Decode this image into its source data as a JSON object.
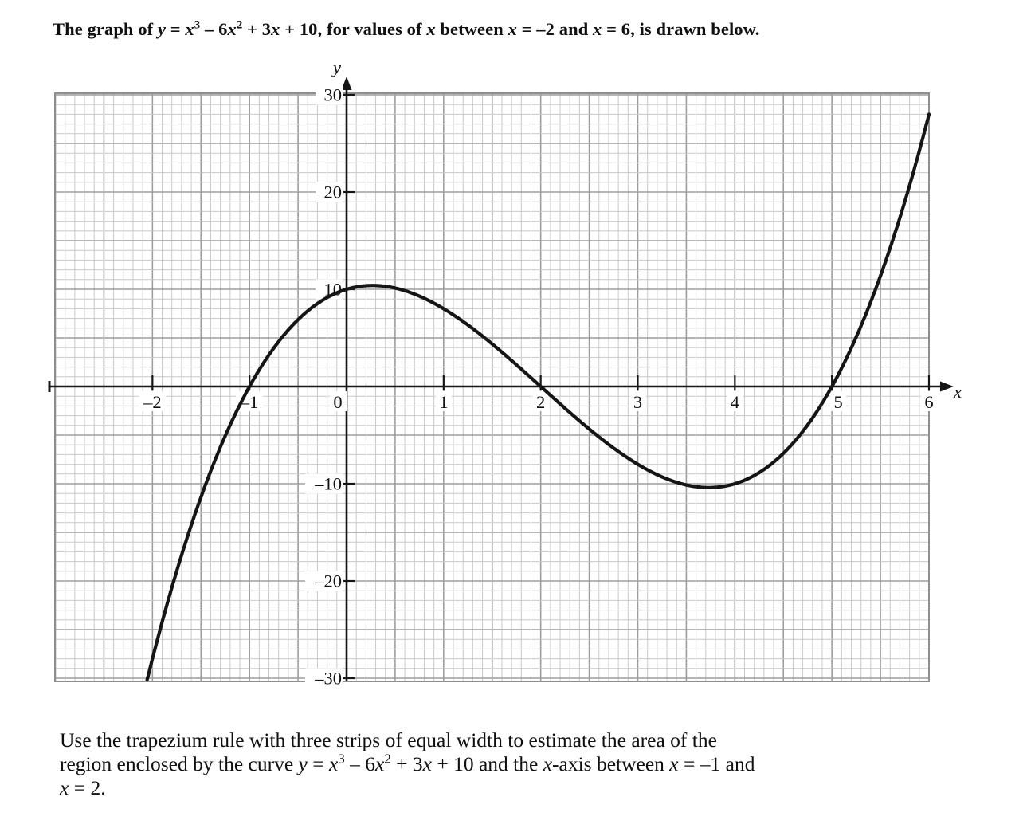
{
  "page": {
    "title_segments": [
      {
        "t": "The graph of "
      },
      {
        "t": "y",
        "i": true
      },
      {
        "t": " = "
      },
      {
        "t": "x",
        "i": true
      },
      {
        "t": "3",
        "s": true
      },
      {
        "t": " – 6"
      },
      {
        "t": "x",
        "i": true
      },
      {
        "t": "2",
        "s": true
      },
      {
        "t": " + 3"
      },
      {
        "t": "x",
        "i": true
      },
      {
        "t": " + 10, for values of "
      },
      {
        "t": "x",
        "i": true
      },
      {
        "t": " between "
      },
      {
        "t": "x",
        "i": true
      },
      {
        "t": " = –2 and "
      },
      {
        "t": "x",
        "i": true
      },
      {
        "t": " = 6, is drawn below."
      }
    ],
    "question_lines": [
      [
        {
          "t": "Use the trapezium rule with three strips of equal width to estimate the area of the"
        }
      ],
      [
        {
          "t": "region enclosed by the curve "
        },
        {
          "t": "y",
          "i": true
        },
        {
          "t": " = "
        },
        {
          "t": "x",
          "i": true
        },
        {
          "t": "3",
          "s": true
        },
        {
          "t": " – 6"
        },
        {
          "t": "x",
          "i": true
        },
        {
          "t": "2",
          "s": true
        },
        {
          "t": " + 3"
        },
        {
          "t": "x",
          "i": true
        },
        {
          "t": " + 10 and the "
        },
        {
          "t": "x",
          "i": true
        },
        {
          "t": "-axis between "
        },
        {
          "t": "x",
          "i": true
        },
        {
          "t": " = –1 and"
        }
      ],
      [
        {
          "t": "x",
          "i": true
        },
        {
          "t": " = 2."
        }
      ]
    ]
  },
  "chart_data": {
    "type": "line",
    "title": "",
    "equation": "y = x^3 - 6x^2 + 3x + 10",
    "coefficients": {
      "a3": 1,
      "a2": -6,
      "a1": 3,
      "a0": 10
    },
    "x_range_stated": [
      -2,
      6
    ],
    "x_domain_drawn": [
      -2.055,
      6.0
    ],
    "xlabel": "x",
    "ylabel": "y",
    "xlim": [
      -3,
      6
    ],
    "ylim": [
      -30,
      30
    ],
    "x_ticks": [
      -2,
      -1,
      0,
      1,
      2,
      3,
      4,
      5,
      6
    ],
    "x_tick_labels": [
      "–2",
      "–1",
      "0",
      "1",
      "2",
      "3",
      "4",
      "5",
      "6"
    ],
    "y_ticks": [
      30,
      20,
      10,
      -10,
      -20,
      -30
    ],
    "y_tick_labels": [
      "30",
      "20",
      "10",
      "–10",
      "–20",
      "–30"
    ],
    "grid": {
      "on": true,
      "minor_squares_per_x_unit": 10,
      "major_every_minor": 5
    },
    "key_points": {
      "roots": [
        -1,
        2,
        5
      ],
      "y_intercept": [
        0,
        10
      ],
      "local_max": [
        0.27,
        10.39
      ],
      "local_min": [
        3.73,
        -10.39
      ],
      "integer_samples": [
        [
          -2,
          -28
        ],
        [
          -1,
          0
        ],
        [
          0,
          10
        ],
        [
          1,
          8
        ],
        [
          2,
          0
        ],
        [
          3,
          -8
        ],
        [
          4,
          -10
        ],
        [
          5,
          0
        ],
        [
          6,
          28
        ]
      ]
    },
    "colors": {
      "curve": "#151515",
      "axis": "#151515",
      "grid_minor": "#c9c9c9",
      "grid_major": "#9d9d9d",
      "grid_border": "#8f8f8f",
      "label_backdrop": "#ffffff"
    }
  }
}
